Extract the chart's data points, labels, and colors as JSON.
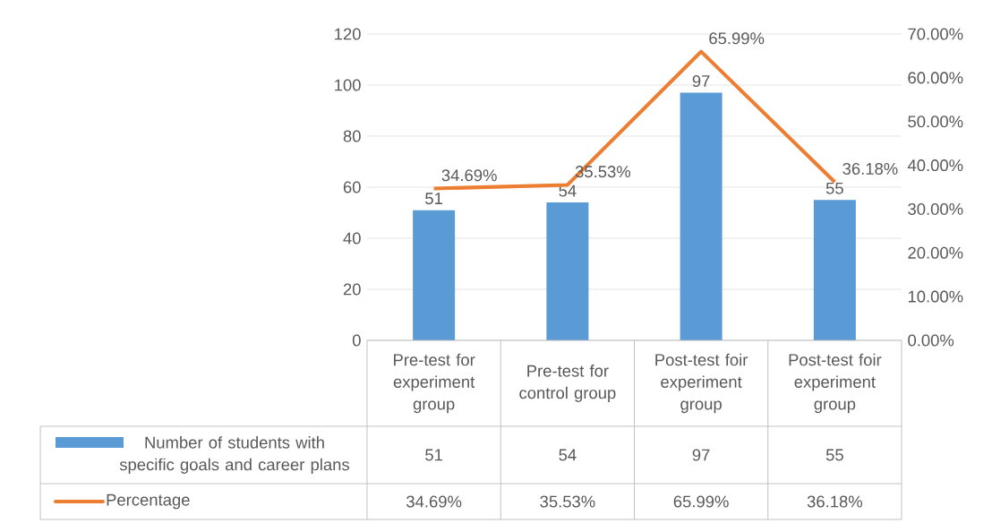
{
  "chart_data": {
    "type": "bar",
    "categories": [
      "Pre-test for experiment group",
      "Pre-test for control group",
      "Post-test foir experiment group",
      "Post-test foir experiment group"
    ],
    "series": [
      {
        "name": "Number of students with specific goals and career plans",
        "color": "#5b9bd5",
        "values": [
          51,
          54,
          97,
          55
        ],
        "value_labels": [
          "51",
          "54",
          "97",
          "55"
        ]
      },
      {
        "name": "Percentage",
        "type": "line",
        "axis": "y2",
        "color": "#ed7d31",
        "values": [
          34.69,
          35.53,
          65.99,
          36.18
        ],
        "value_labels": [
          "34.69%",
          "35.53%",
          "65.99%",
          "36.18%"
        ]
      }
    ],
    "ylim": [
      0,
      120
    ],
    "yticks": [
      0,
      20,
      40,
      60,
      80,
      100,
      120
    ],
    "y2lim": [
      0,
      70
    ],
    "y2ticks": [
      {
        "value": 0,
        "label": "0.00%"
      },
      {
        "value": 10,
        "label": "10.00%"
      },
      {
        "value": 20,
        "label": "20.00%"
      },
      {
        "value": 30,
        "label": "30.00%"
      },
      {
        "value": 40,
        "label": "40.00%"
      },
      {
        "value": 50,
        "label": "50.00%"
      },
      {
        "value": 60,
        "label": "60.00%"
      },
      {
        "value": 70,
        "label": "70.00%"
      }
    ],
    "grid": "y",
    "legend": "bottom"
  }
}
